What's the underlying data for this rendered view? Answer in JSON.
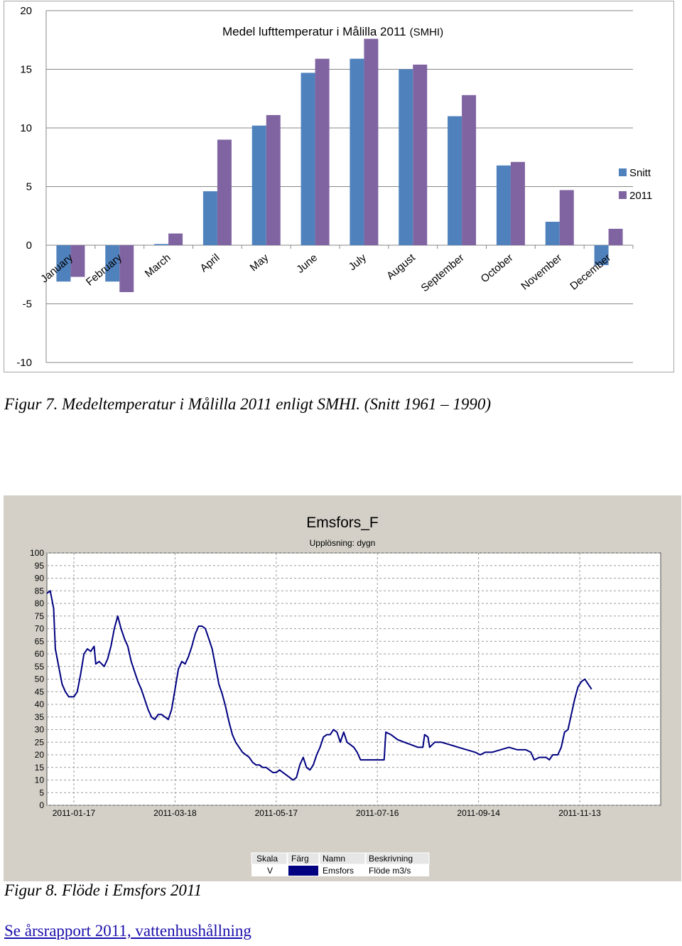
{
  "chart_data": [
    {
      "type": "bar",
      "title": "Medel lufttemperatur i Målilla 2011",
      "title_suffix": "(SMHI)",
      "categories": [
        "January",
        "February",
        "March",
        "April",
        "May",
        "June",
        "July",
        "August",
        "September",
        "October",
        "November",
        "December"
      ],
      "series": [
        {
          "name": "Snitt",
          "color": "#4f81bd",
          "values": [
            -3.1,
            -3.1,
            0.1,
            4.6,
            10.2,
            14.7,
            15.9,
            15.0,
            11.0,
            6.8,
            2.0,
            -1.7
          ]
        },
        {
          "name": "2011",
          "color": "#8064a2",
          "values": [
            -2.7,
            -4.0,
            1.0,
            9.0,
            11.1,
            15.9,
            17.6,
            15.4,
            12.8,
            7.1,
            4.7,
            1.4
          ]
        }
      ],
      "ylim": [
        -10,
        20
      ],
      "yticks": [
        "20",
        "15",
        "10",
        "5",
        "0",
        "-5",
        "-10"
      ],
      "grid": true,
      "legend_position": "right"
    },
    {
      "type": "line",
      "title": "Emsfors_F",
      "subtitle": "Upplösning: dygn",
      "ylim": [
        0,
        100
      ],
      "yticks": [
        "100",
        "95",
        "90",
        "85",
        "80",
        "75",
        "70",
        "65",
        "60",
        "55",
        "50",
        "45",
        "40",
        "35",
        "30",
        "25",
        "20",
        "15",
        "10",
        "5",
        "0"
      ],
      "xticks": [
        "2011-01-17",
        "2011-03-18",
        "2011-05-17",
        "2011-07-16",
        "2011-09-14",
        "2011-11-13"
      ],
      "xrange_days": [
        1,
        365
      ],
      "xtick_days": [
        17,
        77,
        137,
        197,
        257,
        317
      ],
      "line_color": "#000080",
      "series": [
        {
          "name": "Emsfors",
          "points": [
            [
              1,
              84
            ],
            [
              3,
              85
            ],
            [
              5,
              78
            ],
            [
              6,
              62
            ],
            [
              8,
              55
            ],
            [
              10,
              48
            ],
            [
              12,
              45
            ],
            [
              14,
              43
            ],
            [
              17,
              43
            ],
            [
              19,
              45
            ],
            [
              21,
              52
            ],
            [
              23,
              60
            ],
            [
              25,
              62
            ],
            [
              27,
              61
            ],
            [
              29,
              63
            ],
            [
              30,
              56
            ],
            [
              32,
              57
            ],
            [
              35,
              55
            ],
            [
              37,
              58
            ],
            [
              39,
              63
            ],
            [
              41,
              70
            ],
            [
              43,
              75
            ],
            [
              45,
              70
            ],
            [
              47,
              66
            ],
            [
              49,
              63
            ],
            [
              51,
              57
            ],
            [
              53,
              53
            ],
            [
              55,
              49
            ],
            [
              57,
              46
            ],
            [
              59,
              42
            ],
            [
              61,
              38
            ],
            [
              63,
              35
            ],
            [
              65,
              34
            ],
            [
              67,
              36
            ],
            [
              69,
              36
            ],
            [
              71,
              35
            ],
            [
              73,
              34
            ],
            [
              75,
              38
            ],
            [
              77,
              46
            ],
            [
              79,
              54
            ],
            [
              81,
              57
            ],
            [
              83,
              56
            ],
            [
              85,
              59
            ],
            [
              87,
              63
            ],
            [
              89,
              68
            ],
            [
              91,
              71
            ],
            [
              93,
              71
            ],
            [
              95,
              70
            ],
            [
              97,
              66
            ],
            [
              99,
              62
            ],
            [
              101,
              55
            ],
            [
              103,
              48
            ],
            [
              105,
              44
            ],
            [
              107,
              39
            ],
            [
              109,
              33
            ],
            [
              111,
              28
            ],
            [
              113,
              25
            ],
            [
              115,
              23
            ],
            [
              117,
              21
            ],
            [
              119,
              20
            ],
            [
              121,
              19
            ],
            [
              123,
              17
            ],
            [
              125,
              16
            ],
            [
              127,
              16
            ],
            [
              129,
              15
            ],
            [
              131,
              15
            ],
            [
              133,
              14
            ],
            [
              135,
              13
            ],
            [
              137,
              13
            ],
            [
              139,
              14
            ],
            [
              141,
              13
            ],
            [
              143,
              12
            ],
            [
              145,
              11
            ],
            [
              147,
              10
            ],
            [
              149,
              11
            ],
            [
              151,
              16
            ],
            [
              153,
              19
            ],
            [
              155,
              15
            ],
            [
              157,
              14
            ],
            [
              159,
              16
            ],
            [
              161,
              20
            ],
            [
              163,
              23
            ],
            [
              165,
              27
            ],
            [
              167,
              28
            ],
            [
              169,
              28
            ],
            [
              171,
              30
            ],
            [
              173,
              29
            ],
            [
              175,
              25
            ],
            [
              177,
              29
            ],
            [
              179,
              25
            ],
            [
              181,
              24
            ],
            [
              183,
              23
            ],
            [
              185,
              21
            ],
            [
              187,
              18
            ],
            [
              191,
              18
            ],
            [
              195,
              18
            ],
            [
              199,
              18
            ],
            [
              201,
              18
            ],
            [
              202,
              29
            ],
            [
              205,
              28
            ],
            [
              209,
              26
            ],
            [
              213,
              25
            ],
            [
              217,
              24
            ],
            [
              221,
              23
            ],
            [
              224,
              23
            ],
            [
              225,
              28
            ],
            [
              227,
              27
            ],
            [
              228,
              23
            ],
            [
              231,
              25
            ],
            [
              235,
              25
            ],
            [
              240,
              24
            ],
            [
              245,
              23
            ],
            [
              250,
              22
            ],
            [
              255,
              21
            ],
            [
              258,
              20
            ],
            [
              261,
              21
            ],
            [
              265,
              21
            ],
            [
              270,
              22
            ],
            [
              275,
              23
            ],
            [
              280,
              22
            ],
            [
              285,
              22
            ],
            [
              288,
              21
            ],
            [
              290,
              18
            ],
            [
              293,
              19
            ],
            [
              297,
              19
            ],
            [
              299,
              18
            ],
            [
              301,
              20
            ],
            [
              304,
              20
            ],
            [
              306,
              23
            ],
            [
              308,
              29
            ],
            [
              310,
              30
            ],
            [
              312,
              36
            ],
            [
              314,
              42
            ],
            [
              316,
              47
            ],
            [
              318,
              49
            ],
            [
              320,
              50
            ],
            [
              322,
              48
            ],
            [
              324,
              46
            ]
          ]
        }
      ],
      "legend_table": {
        "headers": [
          "Skala",
          "Färg",
          "Namn",
          "Beskrivning"
        ],
        "row": [
          "V",
          "",
          "Emsfors",
          "Flöde m3/s"
        ]
      }
    }
  ],
  "captions": {
    "fig7": "Figur 7. Medeltemperatur i Målilla 2011 enligt SMHI. (Snitt 1961 – 1990)",
    "fig8": "Figur 8. Flöde i Emsfors 2011"
  },
  "link_text": "Se årsrapport 2011, vattenhushållning"
}
